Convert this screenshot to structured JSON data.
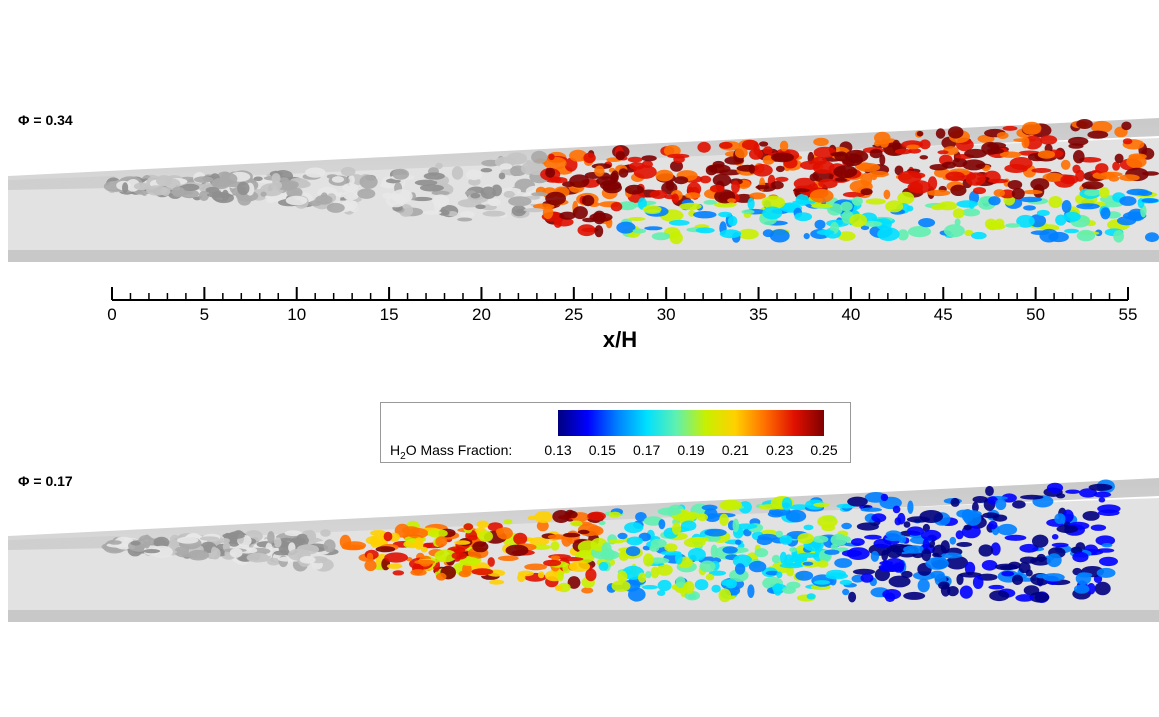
{
  "panels": [
    {
      "label": "Φ = 0.34"
    },
    {
      "label": "Φ = 0.17"
    }
  ],
  "axis": {
    "label": "x/H",
    "xlim": [
      0,
      55
    ],
    "xticks": [
      0,
      5,
      10,
      15,
      20,
      25,
      30,
      35,
      40,
      45,
      50,
      55
    ],
    "minor_step": 1
  },
  "colorbar": {
    "label_parts": [
      "H",
      "2",
      "O Mass Fraction:"
    ],
    "lim": [
      0.13,
      0.25
    ],
    "ticks": [
      0.13,
      0.15,
      0.17,
      0.19,
      0.21,
      0.23,
      0.25
    ],
    "colormap": [
      "#00007f",
      "#0000ff",
      "#0080ff",
      "#00e0ff",
      "#60f0b0",
      "#c8f000",
      "#ffd000",
      "#ff7000",
      "#e01000",
      "#7f0000"
    ]
  }
}
